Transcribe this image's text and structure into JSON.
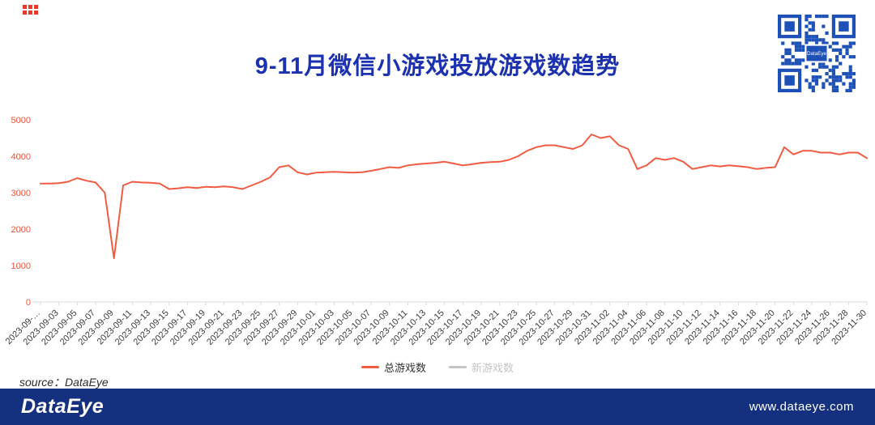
{
  "page": {
    "title": "9-11月微信小游戏投放游戏数趋势",
    "source_note": "source：DataEye",
    "footer": {
      "logo": "DataEye",
      "website": "www.dataeye.com"
    },
    "qr_center_label": "DataEye"
  },
  "colors": {
    "title_blue": "#1b31b0",
    "line_orange": "#f25b43",
    "ytick_red": "#e8543e",
    "footer_navy": "#14307e",
    "qr_blue": "#1d51b8",
    "inactive_gray": "#c4c4c4"
  },
  "legend": {
    "items": [
      {
        "label": "总游戏数",
        "color": "#f25b43",
        "active": true
      },
      {
        "label": "新游戏数",
        "color": "#c4c4c4",
        "active": false
      }
    ]
  },
  "chart_data": {
    "type": "line",
    "title": "9-11月微信小游戏投放游戏数趋势",
    "xlabel": "",
    "ylabel": "",
    "ylim": [
      0,
      5000
    ],
    "yticks": [
      0,
      1000,
      2000,
      3000,
      4000,
      5000
    ],
    "grid": false,
    "legend_position": "bottom",
    "x_tick_labels": [
      "2023-09-…",
      "2023-09-03",
      "2023-09-05",
      "2023-09-07",
      "2023-09-09",
      "2023-09-11",
      "2023-09-13",
      "2023-09-15",
      "2023-09-17",
      "2023-09-19",
      "2023-09-21",
      "2023-09-23",
      "2023-09-25",
      "2023-09-27",
      "2023-09-29",
      "2023-10-01",
      "2023-10-03",
      "2023-10-05",
      "2023-10-07",
      "2023-10-09",
      "2023-10-11",
      "2023-10-13",
      "2023-10-15",
      "2023-10-17",
      "2023-10-19",
      "2023-10-21",
      "2023-10-23",
      "2023-10-25",
      "2023-10-27",
      "2023-10-29",
      "2023-10-31",
      "2023-11-02",
      "2023-11-04",
      "2023-11-06",
      "2023-11-08",
      "2023-11-10",
      "2023-11-12",
      "2023-11-14",
      "2023-11-16",
      "2023-11-18",
      "2023-11-20",
      "2023-11-22",
      "2023-11-24",
      "2023-11-26",
      "2023-11-28",
      "2023-11-30"
    ],
    "x": [
      "2023-09-01",
      "2023-09-02",
      "2023-09-03",
      "2023-09-04",
      "2023-09-05",
      "2023-09-06",
      "2023-09-07",
      "2023-09-08",
      "2023-09-09",
      "2023-09-10",
      "2023-09-11",
      "2023-09-12",
      "2023-09-13",
      "2023-09-14",
      "2023-09-15",
      "2023-09-16",
      "2023-09-17",
      "2023-09-18",
      "2023-09-19",
      "2023-09-20",
      "2023-09-21",
      "2023-09-22",
      "2023-09-23",
      "2023-09-24",
      "2023-09-25",
      "2023-09-26",
      "2023-09-27",
      "2023-09-28",
      "2023-09-29",
      "2023-09-30",
      "2023-10-01",
      "2023-10-02",
      "2023-10-03",
      "2023-10-04",
      "2023-10-05",
      "2023-10-06",
      "2023-10-07",
      "2023-10-08",
      "2023-10-09",
      "2023-10-10",
      "2023-10-11",
      "2023-10-12",
      "2023-10-13",
      "2023-10-14",
      "2023-10-15",
      "2023-10-16",
      "2023-10-17",
      "2023-10-18",
      "2023-10-19",
      "2023-10-20",
      "2023-10-21",
      "2023-10-22",
      "2023-10-23",
      "2023-10-24",
      "2023-10-25",
      "2023-10-26",
      "2023-10-27",
      "2023-10-28",
      "2023-10-29",
      "2023-10-30",
      "2023-10-31",
      "2023-11-01",
      "2023-11-02",
      "2023-11-03",
      "2023-11-04",
      "2023-11-05",
      "2023-11-06",
      "2023-11-07",
      "2023-11-08",
      "2023-11-09",
      "2023-11-10",
      "2023-11-11",
      "2023-11-12",
      "2023-11-13",
      "2023-11-14",
      "2023-11-15",
      "2023-11-16",
      "2023-11-17",
      "2023-11-18",
      "2023-11-19",
      "2023-11-20",
      "2023-11-21",
      "2023-11-22",
      "2023-11-23",
      "2023-11-24",
      "2023-11-25",
      "2023-11-26",
      "2023-11-27",
      "2023-11-28",
      "2023-11-29",
      "2023-11-30"
    ],
    "series": [
      {
        "name": "总游戏数",
        "color": "#f25b43",
        "visible": true,
        "values": [
          3250,
          3250,
          3260,
          3300,
          3400,
          3330,
          3280,
          3000,
          1200,
          3200,
          3300,
          3280,
          3270,
          3250,
          3100,
          3120,
          3150,
          3130,
          3160,
          3150,
          3170,
          3150,
          3100,
          3200,
          3300,
          3420,
          3700,
          3750,
          3560,
          3500,
          3550,
          3560,
          3570,
          3560,
          3550,
          3560,
          3600,
          3650,
          3700,
          3680,
          3750,
          3780,
          3800,
          3820,
          3850,
          3800,
          3750,
          3780,
          3820,
          3840,
          3850,
          3900,
          4000,
          4150,
          4250,
          4300,
          4300,
          4250,
          4200,
          4300,
          4600,
          4500,
          4550,
          4300,
          4200,
          3650,
          3750,
          3950,
          3900,
          3950,
          3850,
          3650,
          3700,
          3750,
          3720,
          3750,
          3730,
          3700,
          3650,
          3680,
          3700,
          4250,
          4050,
          4150,
          4150,
          4100,
          4100,
          4050,
          4100,
          4100,
          3950
        ]
      },
      {
        "name": "新游戏数",
        "color": "#c4c4c4",
        "visible": false,
        "values": []
      }
    ]
  }
}
